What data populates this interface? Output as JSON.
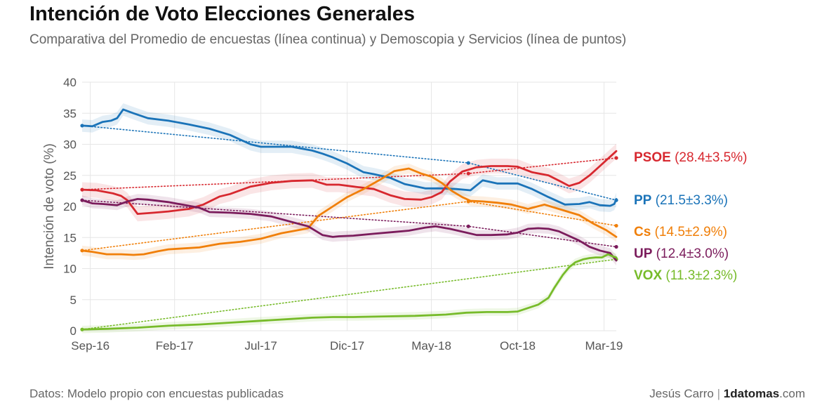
{
  "title": "Intención de Voto Elecciones Generales",
  "subtitle": "Comparativa del Promedio de encuestas (línea continua) y Demoscopia y Servicios (línea de puntos)",
  "source": "Datos: Modelo propio con encuestas publicadas",
  "credit": {
    "author": "Jesús Carro",
    "separator": "|",
    "brand_bold": "1datomas",
    "brand_suffix": ".com"
  },
  "chart_data": {
    "type": "line",
    "ylabel": "Intención de voto (%)",
    "xlabel": "",
    "ylim": [
      0,
      40
    ],
    "yticks": [
      0,
      5,
      10,
      15,
      20,
      25,
      30,
      35,
      40
    ],
    "xlim": [
      2016.63,
      2019.23
    ],
    "xticks": [
      {
        "label": "Sep-16",
        "x": 2016.67
      },
      {
        "label": "Feb-17",
        "x": 2017.08
      },
      {
        "label": "Jul-17",
        "x": 2017.5
      },
      {
        "label": "Dic-17",
        "x": 2017.92
      },
      {
        "label": "May-18",
        "x": 2018.33
      },
      {
        "label": "Oct-18",
        "x": 2018.75
      },
      {
        "label": "Mar-19",
        "x": 2019.17
      }
    ],
    "grid": true,
    "series": [
      {
        "name": "PP",
        "label": "(21.5±3.3%)",
        "color": "#1a73b8",
        "band": 1.0,
        "x": [
          2016.63,
          2016.68,
          2016.73,
          2016.77,
          2016.8,
          2016.83,
          2016.88,
          2016.95,
          2017.05,
          2017.15,
          2017.25,
          2017.35,
          2017.45,
          2017.5,
          2017.55,
          2017.65,
          2017.75,
          2017.8,
          2017.85,
          2017.92,
          2018.0,
          2018.05,
          2018.13,
          2018.2,
          2018.3,
          2018.38,
          2018.45,
          2018.52,
          2018.58,
          2018.65,
          2018.75,
          2018.82,
          2018.9,
          2018.98,
          2019.05,
          2019.1,
          2019.15,
          2019.2,
          2019.22,
          2019.23
        ],
        "y": [
          33.0,
          32.9,
          33.6,
          33.8,
          34.2,
          35.6,
          35.0,
          34.2,
          33.8,
          33.2,
          32.5,
          31.5,
          30.0,
          29.6,
          29.6,
          29.6,
          29.0,
          28.5,
          27.9,
          26.9,
          25.5,
          25.2,
          24.6,
          23.6,
          22.9,
          22.9,
          22.8,
          22.6,
          24.2,
          23.7,
          23.7,
          22.8,
          21.5,
          20.3,
          20.4,
          20.7,
          20.2,
          20.1,
          20.4,
          21.2
        ]
      },
      {
        "name": "PSOE",
        "label": "(28.4±3.5%)",
        "color": "#d7282f",
        "band": 1.2,
        "x": [
          2016.63,
          2016.7,
          2016.78,
          2016.82,
          2016.85,
          2016.9,
          2016.98,
          2017.05,
          2017.15,
          2017.22,
          2017.3,
          2017.35,
          2017.45,
          2017.55,
          2017.65,
          2017.75,
          2017.82,
          2017.88,
          2017.95,
          2018.05,
          2018.13,
          2018.2,
          2018.28,
          2018.33,
          2018.38,
          2018.42,
          2018.48,
          2018.55,
          2018.62,
          2018.7,
          2018.75,
          2018.82,
          2018.9,
          2018.96,
          2019.0,
          2019.05,
          2019.1,
          2019.15,
          2019.2,
          2019.23
        ],
        "y": [
          22.7,
          22.6,
          22.1,
          21.7,
          21.0,
          18.8,
          19.0,
          19.2,
          19.6,
          20.3,
          21.6,
          22.0,
          23.2,
          23.8,
          24.1,
          24.2,
          23.5,
          23.5,
          23.2,
          22.8,
          21.8,
          21.2,
          21.1,
          21.5,
          22.3,
          24.0,
          25.6,
          26.3,
          26.5,
          26.5,
          26.4,
          25.5,
          25.0,
          24.0,
          23.3,
          23.8,
          25.0,
          26.5,
          28.0,
          28.9
        ]
      },
      {
        "name": "Cs",
        "label": "(14.5±2.9%)",
        "color": "#f07f09",
        "band": 0.8,
        "x": [
          2016.63,
          2016.68,
          2016.75,
          2016.82,
          2016.88,
          2016.93,
          2017.0,
          2017.05,
          2017.1,
          2017.2,
          2017.3,
          2017.4,
          2017.5,
          2017.6,
          2017.7,
          2017.73,
          2017.78,
          2017.85,
          2017.92,
          2018.0,
          2018.08,
          2018.15,
          2018.22,
          2018.28,
          2018.33,
          2018.38,
          2018.43,
          2018.48,
          2018.52,
          2018.58,
          2018.65,
          2018.72,
          2018.8,
          2018.88,
          2018.95,
          2019.05,
          2019.12,
          2019.18,
          2019.23
        ],
        "y": [
          12.9,
          12.7,
          12.3,
          12.3,
          12.2,
          12.3,
          12.8,
          13.1,
          13.2,
          13.4,
          14.0,
          14.3,
          14.8,
          15.7,
          16.3,
          16.5,
          18.5,
          20.0,
          21.5,
          22.8,
          24.3,
          25.7,
          26.1,
          25.3,
          24.8,
          23.8,
          22.5,
          21.5,
          20.9,
          20.8,
          20.6,
          20.3,
          19.6,
          20.3,
          19.6,
          18.6,
          17.2,
          16.2,
          15.1
        ]
      },
      {
        "name": "UP",
        "label": "(12.4±3.0%)",
        "color": "#7b1c5c",
        "band": 0.8,
        "x": [
          2016.63,
          2016.68,
          2016.73,
          2016.8,
          2016.85,
          2016.9,
          2016.95,
          2017.05,
          2017.15,
          2017.2,
          2017.25,
          2017.35,
          2017.45,
          2017.55,
          2017.65,
          2017.73,
          2017.8,
          2017.85,
          2017.88,
          2017.95,
          2018.05,
          2018.15,
          2018.22,
          2018.3,
          2018.35,
          2018.42,
          2018.5,
          2018.55,
          2018.62,
          2018.7,
          2018.75,
          2018.8,
          2018.85,
          2018.9,
          2018.95,
          2019.05,
          2019.1,
          2019.15,
          2019.2,
          2019.23
        ],
        "y": [
          21.0,
          20.5,
          20.4,
          20.2,
          20.8,
          21.2,
          21.1,
          20.7,
          20.1,
          19.8,
          19.1,
          19.0,
          18.8,
          18.4,
          17.5,
          16.8,
          15.4,
          15.1,
          15.2,
          15.3,
          15.6,
          15.9,
          16.1,
          16.6,
          16.8,
          16.4,
          15.8,
          15.4,
          15.4,
          15.5,
          15.8,
          16.4,
          16.5,
          16.4,
          16.0,
          14.5,
          13.5,
          12.9,
          12.5,
          11.3
        ]
      },
      {
        "name": "VOX",
        "label": "(11.3±2.3%)",
        "color": "#77bb2a",
        "band": 0.6,
        "x": [
          2016.63,
          2016.75,
          2016.9,
          2017.05,
          2017.2,
          2017.35,
          2017.5,
          2017.65,
          2017.75,
          2017.85,
          2017.95,
          2018.1,
          2018.25,
          2018.4,
          2018.5,
          2018.6,
          2018.7,
          2018.75,
          2018.85,
          2018.9,
          2018.93,
          2018.97,
          2019.0,
          2019.03,
          2019.07,
          2019.1,
          2019.13,
          2019.16,
          2019.19,
          2019.21,
          2019.23
        ],
        "y": [
          0.2,
          0.3,
          0.5,
          0.8,
          1.0,
          1.3,
          1.6,
          1.9,
          2.1,
          2.2,
          2.2,
          2.3,
          2.4,
          2.6,
          2.9,
          3.0,
          3.0,
          3.1,
          4.2,
          5.3,
          7.0,
          9.0,
          10.2,
          11.0,
          11.5,
          11.7,
          11.8,
          11.8,
          12.3,
          12.0,
          11.8
        ]
      }
    ],
    "trend_lines": [
      {
        "series": "PP",
        "color": "#1a73b8",
        "x": [
          2016.63,
          2018.51,
          2019.23
        ],
        "y": [
          33.0,
          27.0,
          21.0
        ]
      },
      {
        "series": "PSOE",
        "color": "#d7282f",
        "x": [
          2016.63,
          2018.51,
          2019.23
        ],
        "y": [
          22.7,
          25.3,
          27.8
        ]
      },
      {
        "series": "Cs",
        "color": "#f07f09",
        "x": [
          2016.63,
          2018.51,
          2019.23
        ],
        "y": [
          12.9,
          20.8,
          16.9
        ]
      },
      {
        "series": "UP",
        "color": "#7b1c5c",
        "x": [
          2016.63,
          2018.51,
          2019.23
        ],
        "y": [
          21.0,
          16.8,
          13.5
        ]
      },
      {
        "series": "VOX",
        "color": "#77bb2a",
        "x": [
          2016.63,
          2019.23
        ],
        "y": [
          0.2,
          11.5
        ]
      }
    ]
  }
}
